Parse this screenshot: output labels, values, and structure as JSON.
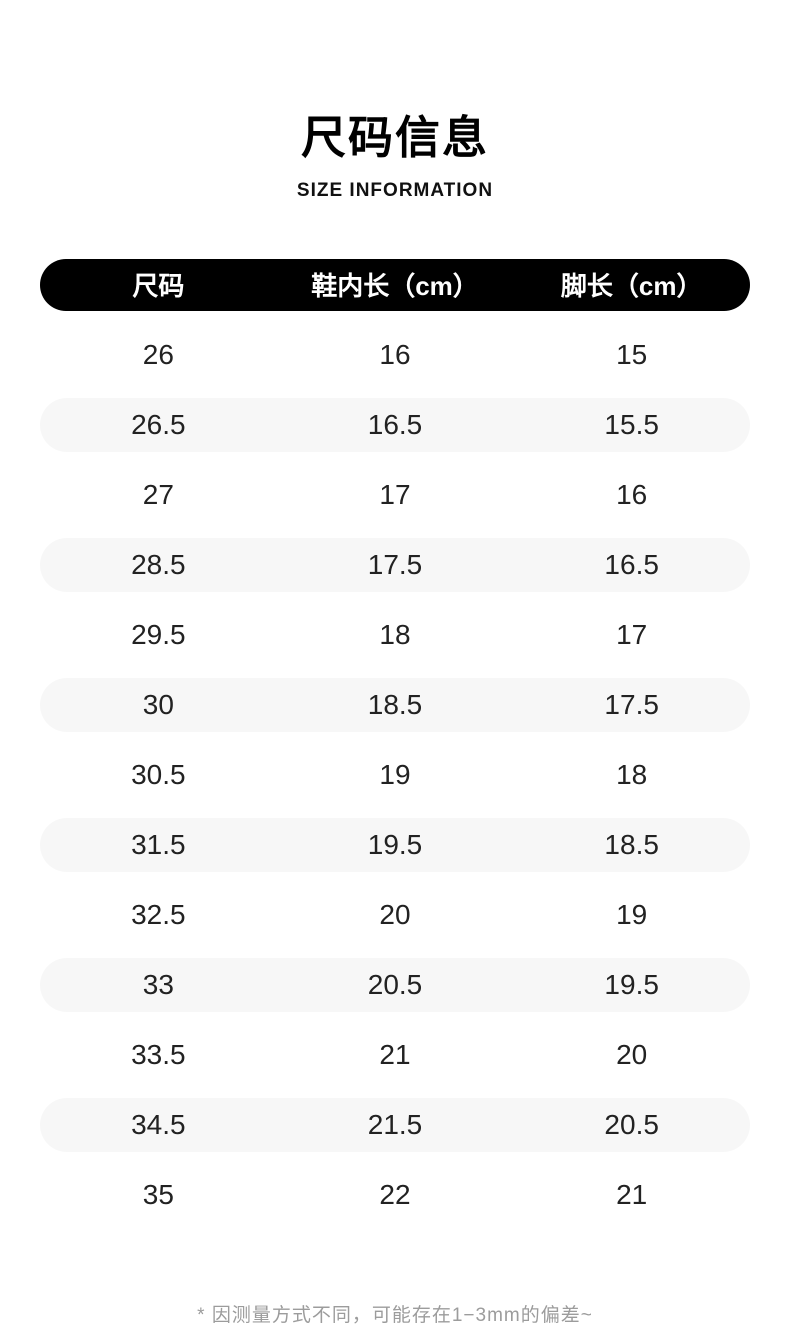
{
  "page": {
    "title": "尺码信息",
    "subtitle": "SIZE INFORMATION",
    "footnote": "* 因测量方式不同，可能存在1−3mm的偏差~"
  },
  "table": {
    "headers": [
      "尺码",
      "鞋内长（cm）",
      "脚长（cm）"
    ],
    "rows": [
      [
        "26",
        "16",
        "15"
      ],
      [
        "26.5",
        "16.5",
        "15.5"
      ],
      [
        "27",
        "17",
        "16"
      ],
      [
        "28.5",
        "17.5",
        "16.5"
      ],
      [
        "29.5",
        "18",
        "17"
      ],
      [
        "30",
        "18.5",
        "17.5"
      ],
      [
        "30.5",
        "19",
        "18"
      ],
      [
        "31.5",
        "19.5",
        "18.5"
      ],
      [
        "32.5",
        "20",
        "19"
      ],
      [
        "33",
        "20.5",
        "19.5"
      ],
      [
        "33.5",
        "21",
        "20"
      ],
      [
        "34.5",
        "21.5",
        "20.5"
      ],
      [
        "35",
        "22",
        "21"
      ]
    ]
  },
  "colors": {
    "header_bg": "#000000",
    "header_text": "#ffffff",
    "row_alt_bg": "#f7f7f7",
    "body_text": "#222222",
    "footnote_text": "#9c9c9c"
  },
  "chart_data": {
    "type": "table",
    "title": "尺码信息",
    "subtitle": "SIZE INFORMATION",
    "columns": [
      "尺码",
      "鞋内长（cm）",
      "脚长（cm）"
    ],
    "rows": [
      [
        26,
        16,
        15
      ],
      [
        26.5,
        16.5,
        15.5
      ],
      [
        27,
        17,
        16
      ],
      [
        28.5,
        17.5,
        16.5
      ],
      [
        29.5,
        18,
        17
      ],
      [
        30,
        18.5,
        17.5
      ],
      [
        30.5,
        19,
        18
      ],
      [
        31.5,
        19.5,
        18.5
      ],
      [
        32.5,
        20,
        19
      ],
      [
        33,
        20.5,
        19.5
      ],
      [
        33.5,
        21,
        20
      ],
      [
        34.5,
        21.5,
        20.5
      ],
      [
        35,
        22,
        21
      ]
    ],
    "annotations": [
      "* 因测量方式不同，可能存在1−3mm的偏差~"
    ],
    "layout": {
      "alternating_row_background": true,
      "header_style": "black-pill-rounded",
      "alignment": "center"
    }
  }
}
